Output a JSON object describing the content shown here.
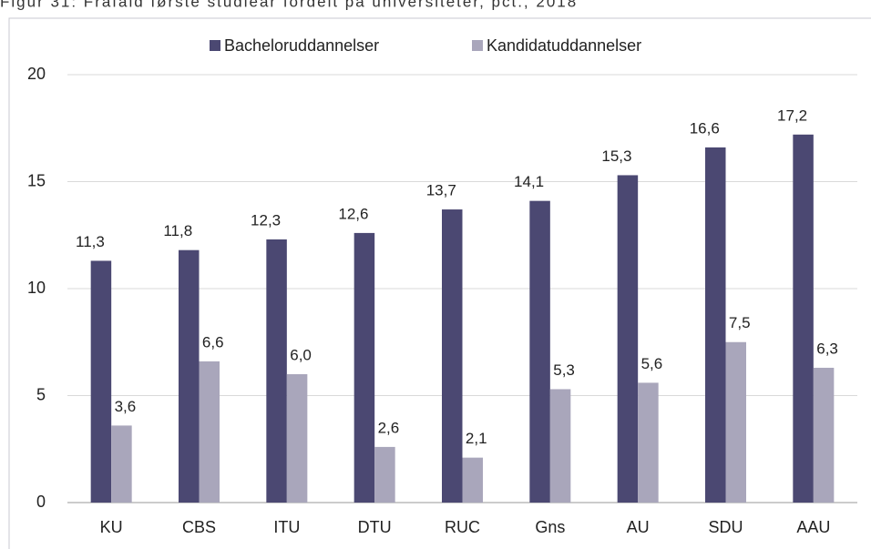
{
  "chart_data": {
    "type": "bar",
    "title": "Figur 31: Frafald første studieår fordelt på universiteter, pct., 2018",
    "categories": [
      "KU",
      "CBS",
      "ITU",
      "DTU",
      "RUC",
      "Gns",
      "AU",
      "SDU",
      "AAU"
    ],
    "series": [
      {
        "name": "Bacheloruddannelser",
        "color": "#4b4872",
        "values": [
          11.3,
          11.8,
          12.3,
          12.6,
          13.7,
          14.1,
          15.3,
          16.6,
          17.2
        ],
        "value_labels": [
          "11,3",
          "11,8",
          "12,3",
          "12,6",
          "13,7",
          "14,1",
          "15,3",
          "16,6",
          "17,2"
        ]
      },
      {
        "name": "Kandidatuddannelser",
        "color": "#a9a6bb",
        "values": [
          3.6,
          6.6,
          6.0,
          2.6,
          2.1,
          5.3,
          5.6,
          7.5,
          6.3
        ],
        "value_labels": [
          "3,6",
          "6,6",
          "6,0",
          "2,6",
          "2,1",
          "5,3",
          "5,6",
          "7,5",
          "6,3"
        ]
      }
    ],
    "ylim": [
      0,
      20
    ],
    "yticks": [
      0,
      5,
      10,
      15,
      20
    ],
    "grid": true,
    "legend": "top"
  }
}
